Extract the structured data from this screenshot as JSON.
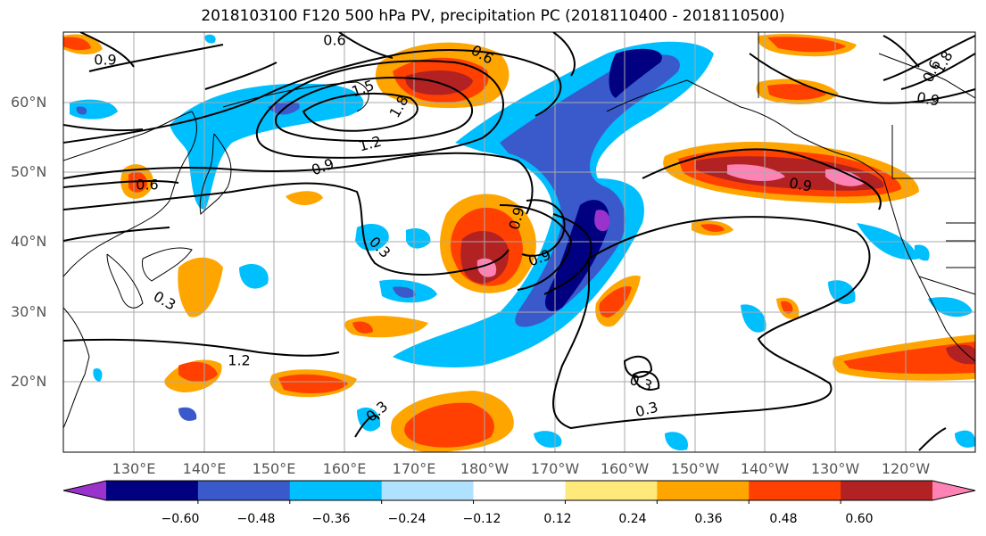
{
  "title": "2018103100 F120 500 hPa PV, precipitation PC (2018110400 - 2018110500)",
  "lat_labels": [
    "60°N",
    "50°N",
    "40°N",
    "30°N",
    "20°N"
  ],
  "lon_labels": [
    "130°E",
    "140°E",
    "150°E",
    "160°E",
    "170°E",
    "180°W",
    "170°W",
    "160°W",
    "150°W",
    "140°W",
    "130°W",
    "120°W"
  ],
  "colorbar": {
    "colors": [
      "#9933cc",
      "#000080",
      "#3a5acc",
      "#00bfff",
      "#b0e2ff",
      "#ffffff",
      "#ffe97a",
      "#ffa500",
      "#ff4000",
      "#b22222",
      "#ff82b4"
    ],
    "tick_labels": [
      "−0.60",
      "−0.48",
      "−0.36",
      "−0.24",
      "−0.12",
      "0.12",
      "0.24",
      "0.36",
      "0.48",
      "0.60"
    ]
  },
  "contour_labels": [
    "0.6",
    "0.6",
    "0.9",
    "1.5",
    "1.8",
    "1.2",
    "0.9",
    "0.6",
    "0.9",
    "0.3",
    "0.9",
    "1.2",
    "0.3",
    "0.3",
    "0.6",
    "0.3",
    "0.9",
    "1.8",
    "0.9",
    "0.3"
  ]
}
